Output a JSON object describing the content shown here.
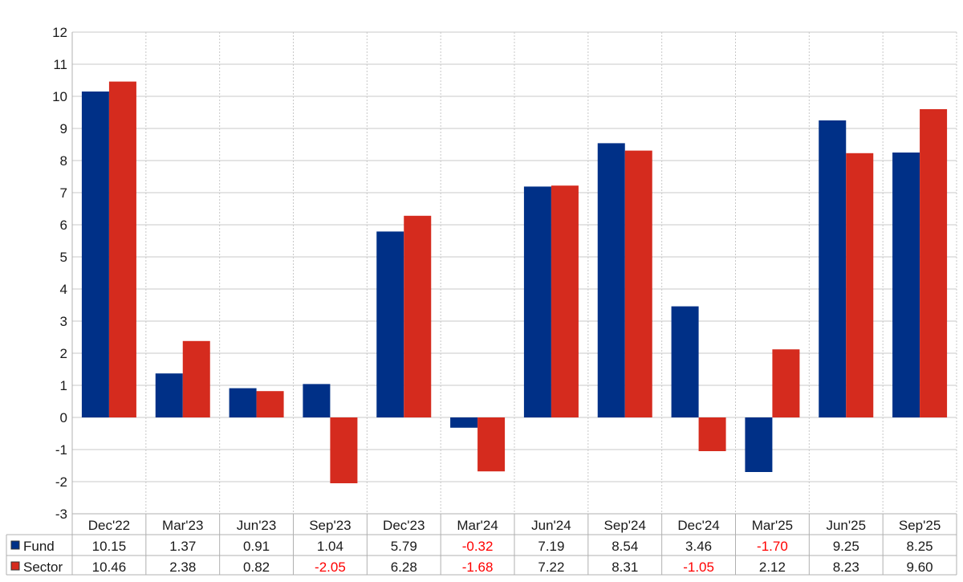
{
  "chart_data": {
    "type": "bar",
    "categories": [
      "Dec'22",
      "Mar'23",
      "Jun'23",
      "Sep'23",
      "Dec'23",
      "Mar'24",
      "Jun'24",
      "Sep'24",
      "Dec'24",
      "Mar'25",
      "Jun'25",
      "Sep'25"
    ],
    "series": [
      {
        "name": "Fund",
        "color": "#003087",
        "values": [
          10.15,
          1.37,
          0.91,
          1.04,
          5.79,
          -0.32,
          7.19,
          8.54,
          3.46,
          -1.7,
          9.25,
          8.25
        ],
        "labels": [
          "10.15",
          "1.37",
          "0.91",
          "1.04",
          "5.79",
          "-0.32",
          "7.19",
          "8.54",
          "3.46",
          "-1.70",
          "9.25",
          "8.25"
        ]
      },
      {
        "name": "Sector",
        "color": "#d52b1e",
        "values": [
          10.46,
          2.38,
          0.82,
          -2.05,
          6.28,
          -1.68,
          7.22,
          8.31,
          -1.05,
          2.12,
          8.23,
          9.6
        ],
        "labels": [
          "10.46",
          "2.38",
          "0.82",
          "-2.05",
          "6.28",
          "-1.68",
          "7.22",
          "8.31",
          "-1.05",
          "2.12",
          "8.23",
          "9.60"
        ]
      }
    ],
    "ylim": [
      -3,
      12
    ],
    "yticks": [
      "-3",
      "-2",
      "-1",
      "0",
      "1",
      "2",
      "3",
      "4",
      "5",
      "6",
      "7",
      "8",
      "9",
      "10",
      "11",
      "12"
    ],
    "grid": true,
    "legend": "data-table-below",
    "negative_label_color": "#ff0000"
  }
}
